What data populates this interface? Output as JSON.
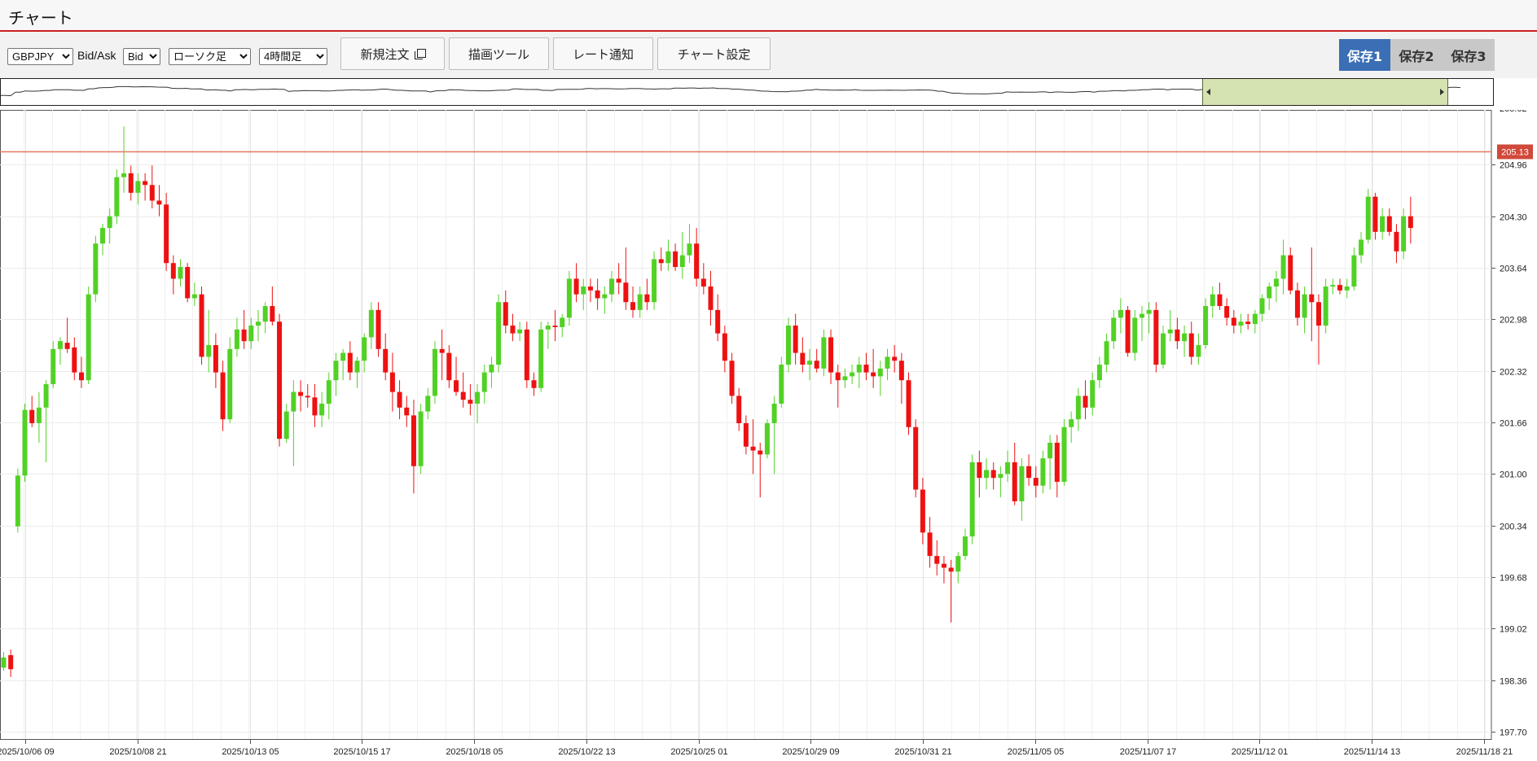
{
  "app": {
    "title": "チャート"
  },
  "toolbar": {
    "pair": {
      "value": "GBPJPY",
      "options": [
        "GBPJPY"
      ]
    },
    "bidask_label": "Bid/Ask",
    "bidask": {
      "value": "Bid",
      "options": [
        "Bid"
      ]
    },
    "chart_type": {
      "value": "ローソク足",
      "options": [
        "ローソク足"
      ]
    },
    "timeframe": {
      "value": "4時間足",
      "options": [
        "4時間足"
      ]
    },
    "new_order_label": "新規注文",
    "draw_tools_label": "描画ツール",
    "rate_alert_label": "レート通知",
    "chart_settings_label": "チャート設定",
    "save1_label": "保存1",
    "save2_label": "保存2",
    "save3_label": "保存3"
  },
  "colors": {
    "up": "#52d125",
    "down": "#ee1111",
    "price_line": "#e47a62",
    "price_badge": "#d0493a",
    "save_active": "#3a6eb5",
    "accent_line": "#cc1f1f"
  },
  "icons": {
    "new_order": "window-icon",
    "navigator_left": "triangle-left-icon",
    "navigator_right": "triangle-right-icon"
  },
  "chart_data": {
    "type": "candlestick",
    "symbol": "GBPJPY",
    "timeframe": "4時間足",
    "current_price_label": "205.13",
    "current_price": 205.13,
    "ylim": [
      197.7,
      205.62
    ],
    "y_ticks": [
      "204.96",
      "204.30",
      "203.64",
      "202.98",
      "202.32",
      "201.66",
      "201.00",
      "200.34",
      "199.68",
      "199.02",
      "198.36",
      "197.70"
    ],
    "x_ticks": [
      "2025/10/06 09",
      "2025/10/08 21",
      "2025/10/13 05",
      "2025/10/15 17",
      "2025/10/18 05",
      "2025/10/22 13",
      "2025/10/25 01",
      "2025/10/29 09",
      "2025/10/31 21",
      "2025/11/05 05",
      "2025/11/07 17",
      "2025/11/12 01",
      "2025/11/14 13",
      "2025/11/18 21"
    ],
    "grid": true,
    "navigator_selection_start": 0.805,
    "candles": [
      [
        198.52,
        198.72,
        198.48,
        198.65
      ],
      [
        198.68,
        198.75,
        198.4,
        198.5
      ],
      [
        200.33,
        201.07,
        200.25,
        200.98
      ],
      [
        200.98,
        201.9,
        200.9,
        201.82
      ],
      [
        201.82,
        202.0,
        201.6,
        201.65
      ],
      [
        201.65,
        202.05,
        201.4,
        201.85
      ],
      [
        201.85,
        202.2,
        201.15,
        202.15
      ],
      [
        202.15,
        202.7,
        202.1,
        202.6
      ],
      [
        202.6,
        202.75,
        202.4,
        202.7
      ],
      [
        202.68,
        203.0,
        202.55,
        202.6
      ],
      [
        202.62,
        202.75,
        202.2,
        202.3
      ],
      [
        202.3,
        202.5,
        202.1,
        202.2
      ],
      [
        202.2,
        203.4,
        202.15,
        203.3
      ],
      [
        203.3,
        204.05,
        203.2,
        203.95
      ],
      [
        203.95,
        204.2,
        203.8,
        204.15
      ],
      [
        204.15,
        204.4,
        203.95,
        204.3
      ],
      [
        204.3,
        204.9,
        204.2,
        204.8
      ],
      [
        204.8,
        205.45,
        204.6,
        204.85
      ],
      [
        204.85,
        204.95,
        204.5,
        204.6
      ],
      [
        204.6,
        204.85,
        204.45,
        204.75
      ],
      [
        204.75,
        204.85,
        204.5,
        204.7
      ],
      [
        204.7,
        204.95,
        204.4,
        204.5
      ],
      [
        204.5,
        204.7,
        204.3,
        204.45
      ],
      [
        204.45,
        204.6,
        203.6,
        203.7
      ],
      [
        203.7,
        203.8,
        203.3,
        203.5
      ],
      [
        203.5,
        203.75,
        203.4,
        203.65
      ],
      [
        203.65,
        203.7,
        203.2,
        203.25
      ],
      [
        203.25,
        203.45,
        203.15,
        203.3
      ],
      [
        203.3,
        203.4,
        202.4,
        202.5
      ],
      [
        202.5,
        203.1,
        202.3,
        202.65
      ],
      [
        202.65,
        202.8,
        202.1,
        202.3
      ],
      [
        202.3,
        202.45,
        201.55,
        201.7
      ],
      [
        201.7,
        202.75,
        201.65,
        202.6
      ],
      [
        202.6,
        203.0,
        202.5,
        202.85
      ],
      [
        202.85,
        203.1,
        202.6,
        202.7
      ],
      [
        202.7,
        203.0,
        202.6,
        202.9
      ],
      [
        202.9,
        203.1,
        202.7,
        202.95
      ],
      [
        202.95,
        203.2,
        202.8,
        203.15
      ],
      [
        203.15,
        203.4,
        202.9,
        202.95
      ],
      [
        202.95,
        203.05,
        201.35,
        201.45
      ],
      [
        201.45,
        201.9,
        201.4,
        201.8
      ],
      [
        201.8,
        202.2,
        201.1,
        202.05
      ],
      [
        202.05,
        202.2,
        201.8,
        202.0
      ],
      [
        202.0,
        202.15,
        201.85,
        201.98
      ],
      [
        201.98,
        202.15,
        201.6,
        201.75
      ],
      [
        201.75,
        202.05,
        201.6,
        201.9
      ],
      [
        201.9,
        202.3,
        201.7,
        202.2
      ],
      [
        202.2,
        202.55,
        202.0,
        202.45
      ],
      [
        202.45,
        202.6,
        202.2,
        202.55
      ],
      [
        202.55,
        202.7,
        202.2,
        202.3
      ],
      [
        202.3,
        202.5,
        202.1,
        202.45
      ],
      [
        202.45,
        202.8,
        202.3,
        202.75
      ],
      [
        202.75,
        203.2,
        202.6,
        203.1
      ],
      [
        203.1,
        203.2,
        202.5,
        202.6
      ],
      [
        202.6,
        202.8,
        202.2,
        202.3
      ],
      [
        202.3,
        202.55,
        201.8,
        202.05
      ],
      [
        202.05,
        202.2,
        201.7,
        201.85
      ],
      [
        201.85,
        202.0,
        201.6,
        201.75
      ],
      [
        201.75,
        201.95,
        200.75,
        201.1
      ],
      [
        201.1,
        201.9,
        201.0,
        201.8
      ],
      [
        201.8,
        202.1,
        201.7,
        202.0
      ],
      [
        202.0,
        202.7,
        201.9,
        202.6
      ],
      [
        202.6,
        202.85,
        202.2,
        202.55
      ],
      [
        202.55,
        202.65,
        202.1,
        202.2
      ],
      [
        202.2,
        202.5,
        202.0,
        202.05
      ],
      [
        202.05,
        202.3,
        201.85,
        201.95
      ],
      [
        201.95,
        202.15,
        201.75,
        201.9
      ],
      [
        201.9,
        202.15,
        201.65,
        202.05
      ],
      [
        202.05,
        202.4,
        201.9,
        202.3
      ],
      [
        202.3,
        202.5,
        202.1,
        202.4
      ],
      [
        202.4,
        203.3,
        202.3,
        203.2
      ],
      [
        203.2,
        203.35,
        202.8,
        202.9
      ],
      [
        202.9,
        203.05,
        202.7,
        202.8
      ],
      [
        202.8,
        202.95,
        202.7,
        202.85
      ],
      [
        202.85,
        202.95,
        202.1,
        202.2
      ],
      [
        202.2,
        202.3,
        202.0,
        202.1
      ],
      [
        202.1,
        202.95,
        202.05,
        202.85
      ],
      [
        202.85,
        202.95,
        202.6,
        202.9
      ],
      [
        202.9,
        203.1,
        202.7,
        202.88
      ],
      [
        202.88,
        203.05,
        202.75,
        203.0
      ],
      [
        203.0,
        203.6,
        202.9,
        203.5
      ],
      [
        203.5,
        203.7,
        203.2,
        203.3
      ],
      [
        203.3,
        203.5,
        203.1,
        203.4
      ],
      [
        203.4,
        203.5,
        203.2,
        203.35
      ],
      [
        203.35,
        203.5,
        203.1,
        203.25
      ],
      [
        203.25,
        203.4,
        203.05,
        203.3
      ],
      [
        203.3,
        203.6,
        203.2,
        203.5
      ],
      [
        203.5,
        203.7,
        203.3,
        203.45
      ],
      [
        203.45,
        203.9,
        203.1,
        203.2
      ],
      [
        203.2,
        203.4,
        203.0,
        203.1
      ],
      [
        203.1,
        203.4,
        203.0,
        203.3
      ],
      [
        203.3,
        203.5,
        203.1,
        203.2
      ],
      [
        203.2,
        203.85,
        203.1,
        203.75
      ],
      [
        203.75,
        203.9,
        203.6,
        203.7
      ],
      [
        203.7,
        204.0,
        203.6,
        203.85
      ],
      [
        203.85,
        203.95,
        203.6,
        203.65
      ],
      [
        203.65,
        204.1,
        203.5,
        203.8
      ],
      [
        203.8,
        204.2,
        203.7,
        203.95
      ],
      [
        203.95,
        204.15,
        203.4,
        203.5
      ],
      [
        203.5,
        203.7,
        203.3,
        203.4
      ],
      [
        203.4,
        203.6,
        202.9,
        203.1
      ],
      [
        203.1,
        203.3,
        202.7,
        202.8
      ],
      [
        202.8,
        202.9,
        202.3,
        202.45
      ],
      [
        202.45,
        202.55,
        201.9,
        202.0
      ],
      [
        202.0,
        202.1,
        201.55,
        201.65
      ],
      [
        201.65,
        201.75,
        201.25,
        201.35
      ],
      [
        201.35,
        201.7,
        201.0,
        201.3
      ],
      [
        201.3,
        201.4,
        200.7,
        201.25
      ],
      [
        201.25,
        201.7,
        201.2,
        201.65
      ],
      [
        201.65,
        202.0,
        201.0,
        201.9
      ],
      [
        201.9,
        202.5,
        201.85,
        202.4
      ],
      [
        202.4,
        203.0,
        202.3,
        202.9
      ],
      [
        202.9,
        203.05,
        202.4,
        202.55
      ],
      [
        202.55,
        202.75,
        202.3,
        202.4
      ],
      [
        202.4,
        202.6,
        202.2,
        202.45
      ],
      [
        202.45,
        202.6,
        202.3,
        202.35
      ],
      [
        202.35,
        202.85,
        202.25,
        202.75
      ],
      [
        202.75,
        202.85,
        202.15,
        202.3
      ],
      [
        202.3,
        202.4,
        201.85,
        202.2
      ],
      [
        202.2,
        202.35,
        202.1,
        202.25
      ],
      [
        202.25,
        202.4,
        202.15,
        202.3
      ],
      [
        202.3,
        202.5,
        202.1,
        202.4
      ],
      [
        202.4,
        202.55,
        202.2,
        202.3
      ],
      [
        202.3,
        202.6,
        202.1,
        202.25
      ],
      [
        202.25,
        202.45,
        202.0,
        202.35
      ],
      [
        202.35,
        202.6,
        202.2,
        202.5
      ],
      [
        202.5,
        202.65,
        202.3,
        202.45
      ],
      [
        202.45,
        202.55,
        201.9,
        202.2
      ],
      [
        202.2,
        202.3,
        201.5,
        201.6
      ],
      [
        201.6,
        201.7,
        200.7,
        200.8
      ],
      [
        200.8,
        200.95,
        200.1,
        200.25
      ],
      [
        200.25,
        200.45,
        199.8,
        199.95
      ],
      [
        199.95,
        200.15,
        199.7,
        199.85
      ],
      [
        199.85,
        199.95,
        199.6,
        199.8
      ],
      [
        199.8,
        199.9,
        199.1,
        199.75
      ],
      [
        199.75,
        200.0,
        199.6,
        199.95
      ],
      [
        199.95,
        200.3,
        199.9,
        200.2
      ],
      [
        200.2,
        201.25,
        200.1,
        201.15
      ],
      [
        201.15,
        201.3,
        200.7,
        200.95
      ],
      [
        200.95,
        201.2,
        200.8,
        201.05
      ],
      [
        201.05,
        201.15,
        200.8,
        200.95
      ],
      [
        200.95,
        201.1,
        200.7,
        201.0
      ],
      [
        201.0,
        201.3,
        200.9,
        201.15
      ],
      [
        201.15,
        201.4,
        200.6,
        200.65
      ],
      [
        200.65,
        201.2,
        200.4,
        201.1
      ],
      [
        201.1,
        201.25,
        200.85,
        200.95
      ],
      [
        200.95,
        201.1,
        200.7,
        200.85
      ],
      [
        200.85,
        201.3,
        200.75,
        201.2
      ],
      [
        201.2,
        201.5,
        200.8,
        201.4
      ],
      [
        201.4,
        201.5,
        200.7,
        200.9
      ],
      [
        200.9,
        201.7,
        200.85,
        201.6
      ],
      [
        201.6,
        201.8,
        201.4,
        201.7
      ],
      [
        201.7,
        202.1,
        201.55,
        202.0
      ],
      [
        202.0,
        202.2,
        201.7,
        201.85
      ],
      [
        201.85,
        202.3,
        201.75,
        202.2
      ],
      [
        202.2,
        202.5,
        202.1,
        202.4
      ],
      [
        202.4,
        202.8,
        202.3,
        202.7
      ],
      [
        202.7,
        203.1,
        202.6,
        203.0
      ],
      [
        203.0,
        203.25,
        202.8,
        203.1
      ],
      [
        203.1,
        203.15,
        202.5,
        202.55
      ],
      [
        202.55,
        203.1,
        202.45,
        203.0
      ],
      [
        203.0,
        203.15,
        202.7,
        203.05
      ],
      [
        203.05,
        203.2,
        202.8,
        203.1
      ],
      [
        203.1,
        203.2,
        202.3,
        202.4
      ],
      [
        202.4,
        202.9,
        202.35,
        202.8
      ],
      [
        202.8,
        203.1,
        202.7,
        202.85
      ],
      [
        202.85,
        203.0,
        202.6,
        202.7
      ],
      [
        202.7,
        202.9,
        202.5,
        202.8
      ],
      [
        202.8,
        202.95,
        202.4,
        202.5
      ],
      [
        202.5,
        202.8,
        202.4,
        202.65
      ],
      [
        202.65,
        203.25,
        202.6,
        203.15
      ],
      [
        203.15,
        203.4,
        203.0,
        203.3
      ],
      [
        203.3,
        203.45,
        203.1,
        203.15
      ],
      [
        203.15,
        203.25,
        202.9,
        203.0
      ],
      [
        203.0,
        203.1,
        202.8,
        202.9
      ],
      [
        202.9,
        203.05,
        202.8,
        202.95
      ],
      [
        202.95,
        203.05,
        202.85,
        202.92
      ],
      [
        202.92,
        203.1,
        202.8,
        203.05
      ],
      [
        203.05,
        203.3,
        202.95,
        203.25
      ],
      [
        203.25,
        203.45,
        203.1,
        203.4
      ],
      [
        203.4,
        203.6,
        203.2,
        203.5
      ],
      [
        203.5,
        204.0,
        203.3,
        203.8
      ],
      [
        203.8,
        203.9,
        203.3,
        203.35
      ],
      [
        203.35,
        203.45,
        202.9,
        203.0
      ],
      [
        203.0,
        203.4,
        202.8,
        203.3
      ],
      [
        203.3,
        203.9,
        202.7,
        203.2
      ],
      [
        203.2,
        203.3,
        202.4,
        202.9
      ],
      [
        202.9,
        203.5,
        202.8,
        203.4
      ],
      [
        203.4,
        203.5,
        203.3,
        203.42
      ],
      [
        203.42,
        203.5,
        203.3,
        203.35
      ],
      [
        203.35,
        203.5,
        203.25,
        203.4
      ],
      [
        203.4,
        203.9,
        203.35,
        203.8
      ],
      [
        203.8,
        204.1,
        203.7,
        204.0
      ],
      [
        204.0,
        204.65,
        203.95,
        204.55
      ],
      [
        204.55,
        204.6,
        204.0,
        204.1
      ],
      [
        204.1,
        204.4,
        204.0,
        204.3
      ],
      [
        204.3,
        204.4,
        204.05,
        204.1
      ],
      [
        204.1,
        204.2,
        203.7,
        203.85
      ],
      [
        203.85,
        204.4,
        203.75,
        204.3
      ],
      [
        204.3,
        204.55,
        203.95,
        204.15
      ]
    ]
  }
}
